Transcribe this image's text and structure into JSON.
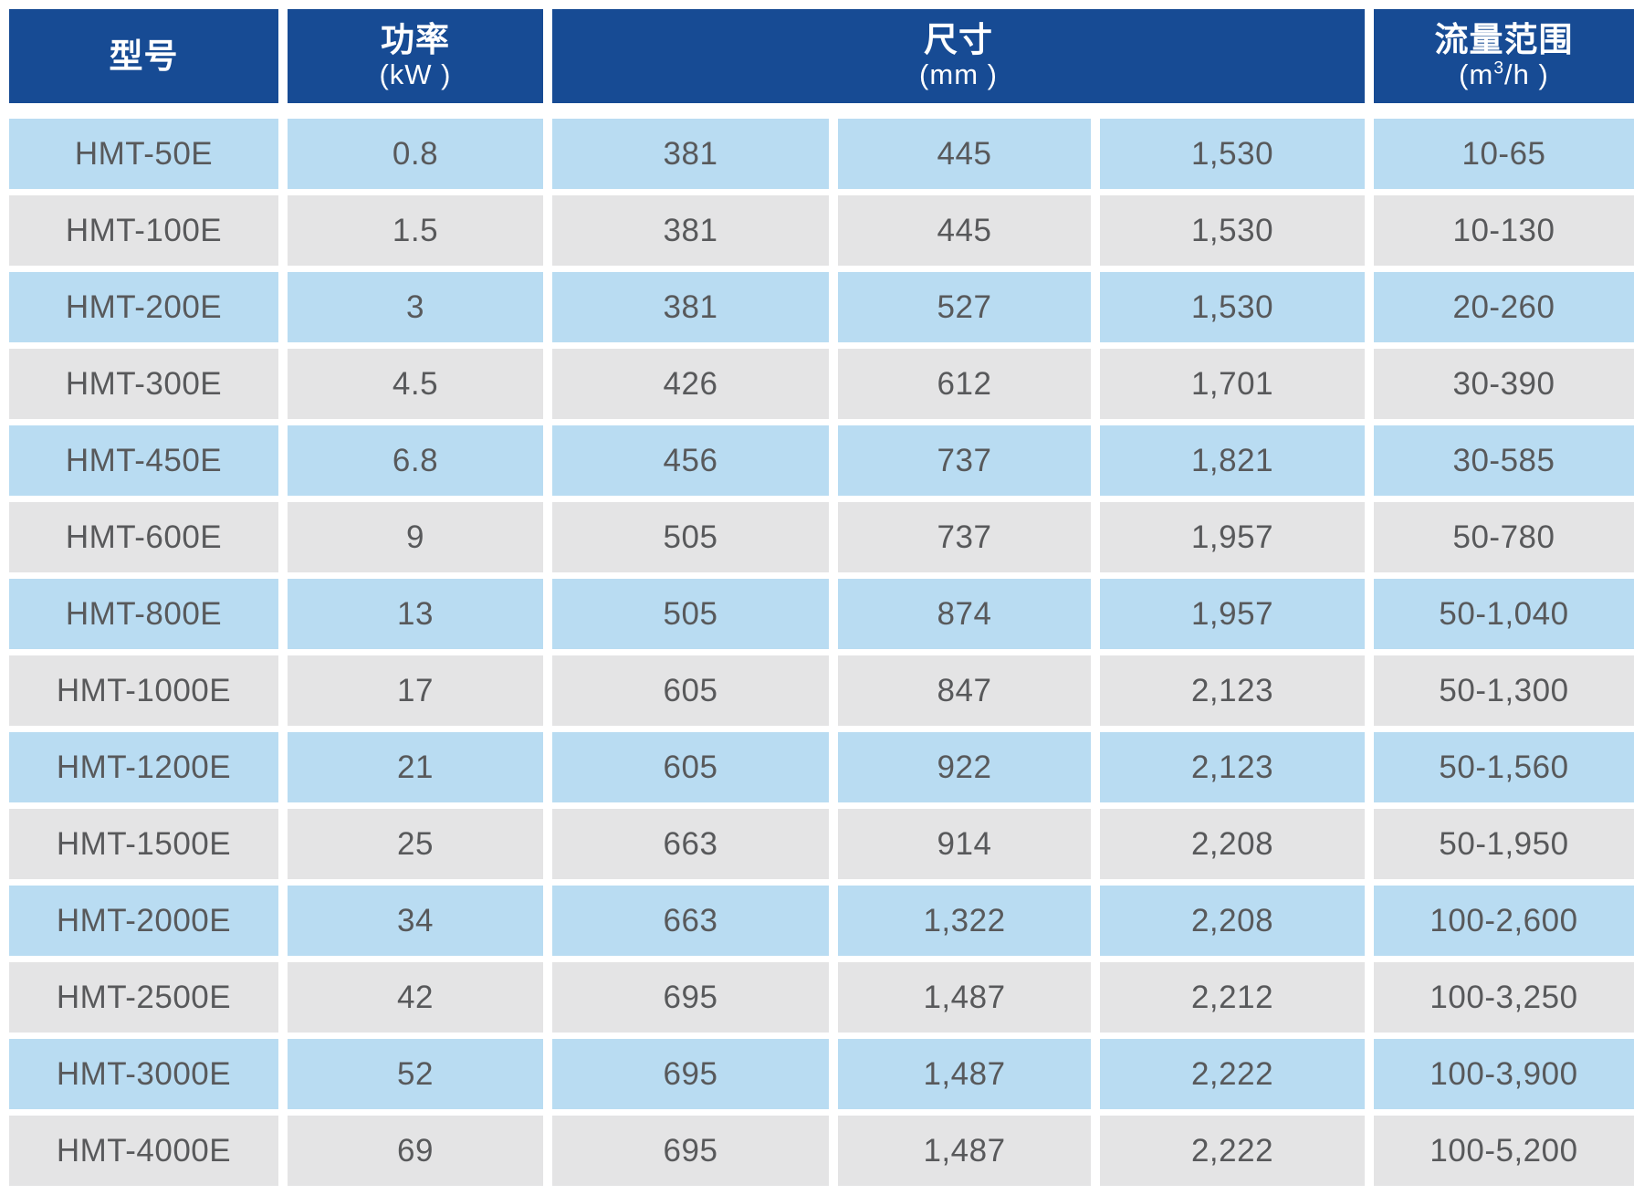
{
  "table": {
    "header": {
      "model": {
        "title": "型号"
      },
      "power": {
        "title": "功率",
        "unit": "(kW )"
      },
      "size": {
        "title": "尺寸",
        "unit": "(mm )"
      },
      "flow": {
        "title": "流量范围",
        "unit_prefix": "(m",
        "unit_sup": "3",
        "unit_suffix": "/h )"
      }
    },
    "rows": [
      {
        "model": "HMT-50E",
        "power": "0.8",
        "dim1": "381",
        "dim2": "445",
        "dim3": "1,530",
        "flow": "10-65"
      },
      {
        "model": "HMT-100E",
        "power": "1.5",
        "dim1": "381",
        "dim2": "445",
        "dim3": "1,530",
        "flow": "10-130"
      },
      {
        "model": "HMT-200E",
        "power": "3",
        "dim1": "381",
        "dim2": "527",
        "dim3": "1,530",
        "flow": "20-260"
      },
      {
        "model": "HMT-300E",
        "power": "4.5",
        "dim1": "426",
        "dim2": "612",
        "dim3": "1,701",
        "flow": "30-390"
      },
      {
        "model": "HMT-450E",
        "power": "6.8",
        "dim1": "456",
        "dim2": "737",
        "dim3": "1,821",
        "flow": "30-585"
      },
      {
        "model": "HMT-600E",
        "power": "9",
        "dim1": "505",
        "dim2": "737",
        "dim3": "1,957",
        "flow": "50-780"
      },
      {
        "model": "HMT-800E",
        "power": "13",
        "dim1": "505",
        "dim2": "874",
        "dim3": "1,957",
        "flow": "50-1,040"
      },
      {
        "model": "HMT-1000E",
        "power": "17",
        "dim1": "605",
        "dim2": "847",
        "dim3": "2,123",
        "flow": "50-1,300"
      },
      {
        "model": "HMT-1200E",
        "power": "21",
        "dim1": "605",
        "dim2": "922",
        "dim3": "2,123",
        "flow": "50-1,560"
      },
      {
        "model": "HMT-1500E",
        "power": "25",
        "dim1": "663",
        "dim2": "914",
        "dim3": "2,208",
        "flow": "50-1,950"
      },
      {
        "model": "HMT-2000E",
        "power": "34",
        "dim1": "663",
        "dim2": "1,322",
        "dim3": "2,208",
        "flow": "100-2,600"
      },
      {
        "model": "HMT-2500E",
        "power": "42",
        "dim1": "695",
        "dim2": "1,487",
        "dim3": "2,212",
        "flow": "100-3,250"
      },
      {
        "model": "HMT-3000E",
        "power": "52",
        "dim1": "695",
        "dim2": "1,487",
        "dim3": "2,222",
        "flow": "100-3,900"
      },
      {
        "model": "HMT-4000E",
        "power": "69",
        "dim1": "695",
        "dim2": "1,487",
        "dim3": "2,222",
        "flow": "100-5,200"
      }
    ],
    "colors": {
      "header_bg": "#174b94",
      "header_text": "#ffffff",
      "row_blue_bg": "#b9dcf2",
      "row_gray_bg": "#e4e4e5",
      "cell_text": "#58595b"
    }
  }
}
